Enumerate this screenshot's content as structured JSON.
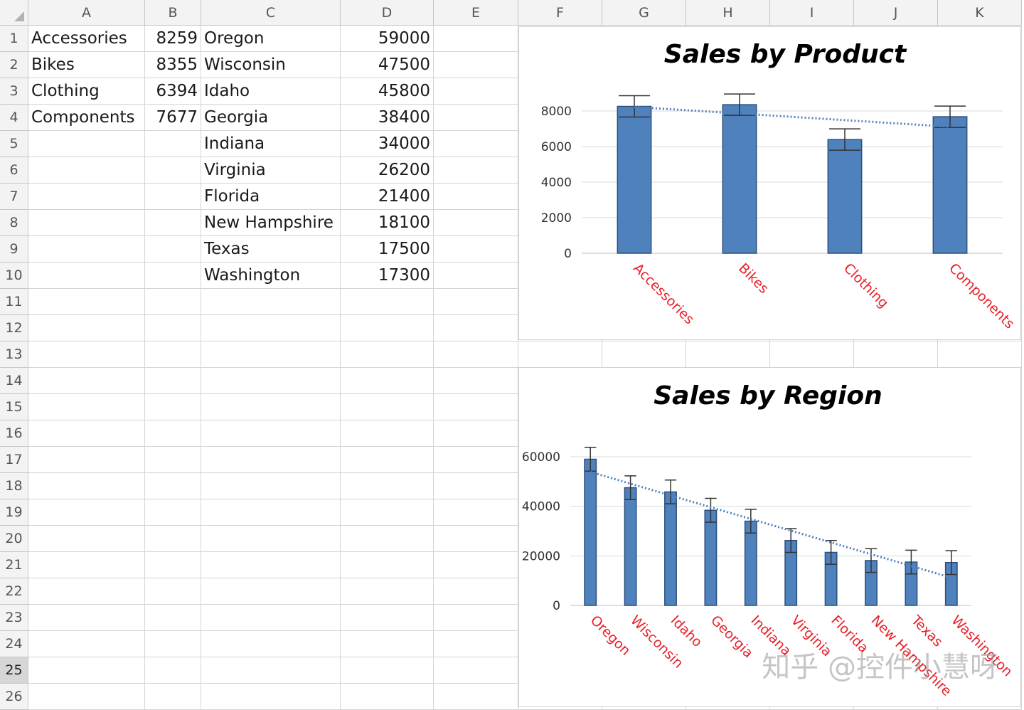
{
  "sheet": {
    "columns": [
      "A",
      "B",
      "C",
      "D",
      "E",
      "F",
      "G",
      "H",
      "I",
      "J",
      "K"
    ],
    "rows": [
      "1",
      "2",
      "3",
      "4",
      "5",
      "6",
      "7",
      "8",
      "9",
      "10",
      "11",
      "12",
      "13",
      "14",
      "15",
      "16",
      "17",
      "18",
      "19",
      "20",
      "21",
      "22",
      "23",
      "24",
      "25",
      "26"
    ],
    "selected_row": "25",
    "cells": [
      [
        "Accessories",
        "8259",
        "Oregon",
        "59000"
      ],
      [
        "Bikes",
        "8355",
        "Wisconsin",
        "47500"
      ],
      [
        "Clothing",
        "6394",
        "Idaho",
        "45800"
      ],
      [
        "Components",
        "7677",
        "Georgia",
        "38400"
      ],
      [
        "",
        "",
        "Indiana",
        "34000"
      ],
      [
        "",
        "",
        "Virginia",
        "26200"
      ],
      [
        "",
        "",
        "Florida",
        "21400"
      ],
      [
        "",
        "",
        "New Hampshire",
        "18100"
      ],
      [
        "",
        "",
        "Texas",
        "17500"
      ],
      [
        "",
        "",
        "Washington",
        "17300"
      ]
    ]
  },
  "watermark": "知乎 @控件小慧呀",
  "chart_data": [
    {
      "type": "bar",
      "title": "Sales by Product",
      "categories": [
        "Accessories",
        "Bikes",
        "Clothing",
        "Components"
      ],
      "values": [
        8259,
        8355,
        6394,
        7677
      ],
      "error_bar": 600,
      "trendline": "linear",
      "ylim": [
        0,
        8000
      ],
      "yticks": [
        "0",
        "2000",
        "4000",
        "6000",
        "8000"
      ],
      "grid": true,
      "legend": "none",
      "colors": {
        "bar": "#4f81bd",
        "bar_edge": "#2c4f7c",
        "trend": "#4f81bd",
        "category_label": "#e8202a"
      }
    },
    {
      "type": "bar",
      "title": "Sales by Region",
      "categories": [
        "Oregon",
        "Wisconsin",
        "Idaho",
        "Georgia",
        "Indiana",
        "Virginia",
        "Florida",
        "New Hampshire",
        "Texas",
        "Washington"
      ],
      "values": [
        59000,
        47500,
        45800,
        38400,
        34000,
        26200,
        21400,
        18100,
        17500,
        17300
      ],
      "error_bar": 4800,
      "trendline": "linear",
      "ylim": [
        0,
        60000
      ],
      "yticks": [
        "0",
        "20000",
        "40000",
        "60000"
      ],
      "grid": true,
      "legend": "none",
      "colors": {
        "bar": "#4f81bd",
        "bar_edge": "#2c4f7c",
        "trend": "#4f81bd",
        "category_label": "#e8202a"
      }
    }
  ]
}
